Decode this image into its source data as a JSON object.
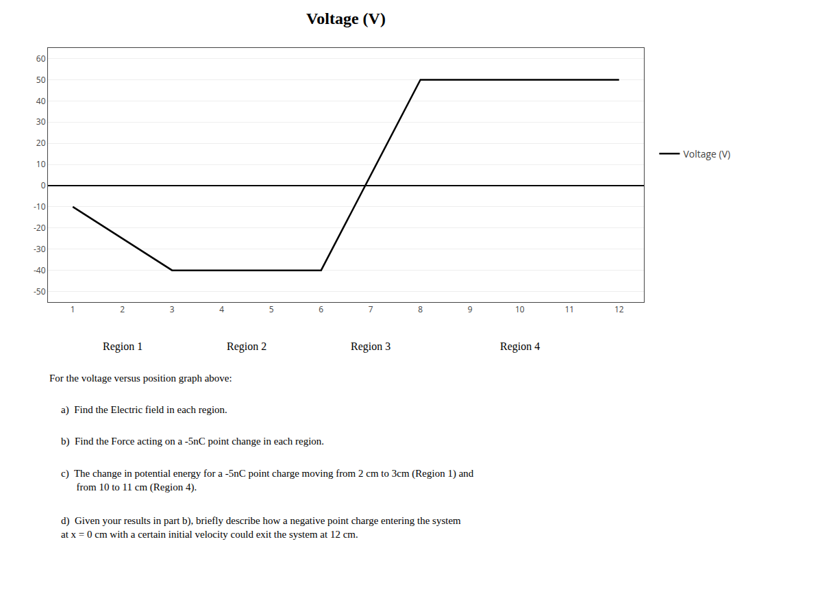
{
  "chart_data": {
    "type": "line",
    "title": "Voltage (V)",
    "x": [
      1,
      3,
      6,
      8,
      12
    ],
    "series": [
      {
        "name": "Voltage (V)",
        "color": "#000000",
        "line_style": "solid",
        "values": [
          -10,
          -40,
          -40,
          50,
          50
        ]
      }
    ],
    "xlim": [
      0.5,
      12.5
    ],
    "ylim": [
      -55,
      65
    ],
    "xticks": [
      1,
      2,
      3,
      4,
      5,
      6,
      7,
      8,
      9,
      10,
      11,
      12
    ],
    "yticks": [
      -50,
      -40,
      -30,
      -20,
      -10,
      0,
      10,
      20,
      30,
      40,
      50,
      60
    ],
    "grid": "y",
    "legend": "right",
    "annotations": [
      "Region 1",
      "Region 2",
      "Region 3",
      "Region 4",
      "For the voltage versus position graph above:",
      "a)  Find the Electric field in each region.",
      "b)  Find the Force acting on a -5nC point change in each region.",
      "c)  The change in potential energy for a -5nC point charge moving from 2 cm to 3cm (Region 1) and\n      from 10 to 11 cm (Region 4).",
      "d)  Given your results in part b), briefly describe how a negative point charge entering the system\nat x = 0 cm with a certain initial velocity could exit the system at 12 cm."
    ]
  }
}
